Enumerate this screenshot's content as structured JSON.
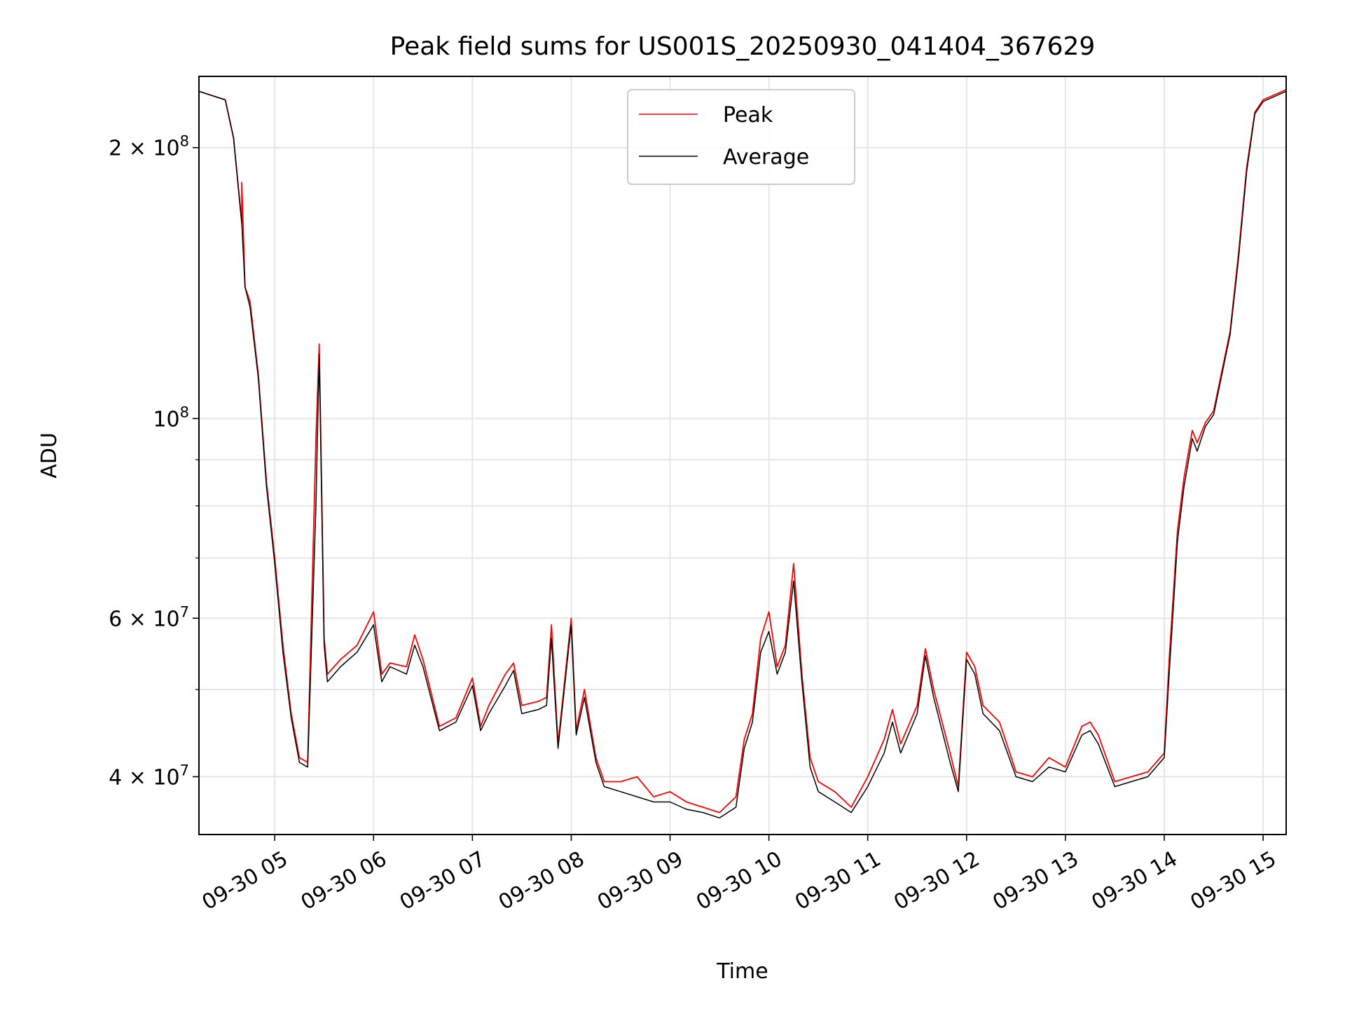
{
  "chart_data": {
    "type": "line",
    "title": "Peak field sums for US001S_20250930_041404_367629",
    "xlabel": "Time",
    "ylabel": "ADU",
    "y_scale": "log",
    "ylim": [
      34500000,
      240000000
    ],
    "xlim": [
      "2025-09-30 04:14",
      "2025-09-30 15:14"
    ],
    "grid": true,
    "legend_position": "top-center",
    "x_ticks": [
      {
        "t": "2025-09-30 05:00",
        "label": "09-30 05"
      },
      {
        "t": "2025-09-30 06:00",
        "label": "09-30 06"
      },
      {
        "t": "2025-09-30 07:00",
        "label": "09-30 07"
      },
      {
        "t": "2025-09-30 08:00",
        "label": "09-30 08"
      },
      {
        "t": "2025-09-30 09:00",
        "label": "09-30 09"
      },
      {
        "t": "2025-09-30 10:00",
        "label": "09-30 10"
      },
      {
        "t": "2025-09-30 11:00",
        "label": "09-30 11"
      },
      {
        "t": "2025-09-30 12:00",
        "label": "09-30 12"
      },
      {
        "t": "2025-09-30 13:00",
        "label": "09-30 13"
      },
      {
        "t": "2025-09-30 14:00",
        "label": "09-30 14"
      },
      {
        "t": "2025-09-30 15:00",
        "label": "09-30 15"
      }
    ],
    "y_ticks_major": [
      {
        "value": 40000000,
        "mantissa": "4",
        "exp": "7"
      },
      {
        "value": 60000000,
        "mantissa": "6",
        "exp": "7"
      },
      {
        "value": 100000000,
        "mantissa": "",
        "exp": "8"
      },
      {
        "value": 200000000,
        "mantissa": "2",
        "exp": "8"
      }
    ],
    "y_ticks_minor": [
      50000000,
      70000000,
      80000000,
      90000000
    ],
    "series": [
      {
        "name": "Peak",
        "color": "#ff0000",
        "points": [
          [
            "2025-09-30 04:14",
            231000000
          ],
          [
            "2025-09-30 04:30",
            226000000
          ],
          [
            "2025-09-30 04:35",
            205000000
          ],
          [
            "2025-09-30 04:40",
            165000000
          ],
          [
            "2025-09-30 04:40",
            183000000
          ],
          [
            "2025-09-30 04:42",
            140000000
          ],
          [
            "2025-09-30 04:45",
            135000000
          ],
          [
            "2025-09-30 04:50",
            112000000
          ],
          [
            "2025-09-30 04:55",
            85000000
          ],
          [
            "2025-09-30 05:00",
            70000000
          ],
          [
            "2025-09-30 05:05",
            56000000
          ],
          [
            "2025-09-30 05:10",
            47000000
          ],
          [
            "2025-09-30 05:15",
            42000000
          ],
          [
            "2025-09-30 05:20",
            41500000
          ],
          [
            "2025-09-30 05:25",
            95000000
          ],
          [
            "2025-09-30 05:27",
            121000000
          ],
          [
            "2025-09-30 05:30",
            57000000
          ],
          [
            "2025-09-30 05:32",
            52000000
          ],
          [
            "2025-09-30 05:40",
            54000000
          ],
          [
            "2025-09-30 05:50",
            56000000
          ],
          [
            "2025-09-30 06:00",
            61000000
          ],
          [
            "2025-09-30 06:05",
            52000000
          ],
          [
            "2025-09-30 06:10",
            53500000
          ],
          [
            "2025-09-30 06:20",
            53000000
          ],
          [
            "2025-09-30 06:25",
            57500000
          ],
          [
            "2025-09-30 06:30",
            54000000
          ],
          [
            "2025-09-30 06:40",
            45500000
          ],
          [
            "2025-09-30 06:50",
            46500000
          ],
          [
            "2025-09-30 07:00",
            51500000
          ],
          [
            "2025-09-30 07:05",
            45500000
          ],
          [
            "2025-09-30 07:10",
            48000000
          ],
          [
            "2025-09-30 07:20",
            52000000
          ],
          [
            "2025-09-30 07:25",
            53500000
          ],
          [
            "2025-09-30 07:30",
            48000000
          ],
          [
            "2025-09-30 07:40",
            48500000
          ],
          [
            "2025-09-30 07:45",
            49000000
          ],
          [
            "2025-09-30 07:48",
            59000000
          ],
          [
            "2025-09-30 07:52",
            43500000
          ],
          [
            "2025-09-30 08:00",
            60000000
          ],
          [
            "2025-09-30 08:03",
            45000000
          ],
          [
            "2025-09-30 08:08",
            50000000
          ],
          [
            "2025-09-30 08:15",
            42000000
          ],
          [
            "2025-09-30 08:20",
            39500000
          ],
          [
            "2025-09-30 08:30",
            39500000
          ],
          [
            "2025-09-30 08:40",
            40000000
          ],
          [
            "2025-09-30 08:50",
            38000000
          ],
          [
            "2025-09-30 09:00",
            38500000
          ],
          [
            "2025-09-30 09:10",
            37500000
          ],
          [
            "2025-09-30 09:20",
            37000000
          ],
          [
            "2025-09-30 09:30",
            36500000
          ],
          [
            "2025-09-30 09:40",
            38000000
          ],
          [
            "2025-09-30 09:45",
            44000000
          ],
          [
            "2025-09-30 09:50",
            47000000
          ],
          [
            "2025-09-30 09:55",
            57000000
          ],
          [
            "2025-09-30 10:00",
            61000000
          ],
          [
            "2025-09-30 10:05",
            53000000
          ],
          [
            "2025-09-30 10:10",
            56000000
          ],
          [
            "2025-09-30 10:15",
            69000000
          ],
          [
            "2025-09-30 10:20",
            52000000
          ],
          [
            "2025-09-30 10:25",
            42000000
          ],
          [
            "2025-09-30 10:30",
            39500000
          ],
          [
            "2025-09-30 10:40",
            38500000
          ],
          [
            "2025-09-30 10:50",
            37000000
          ],
          [
            "2025-09-30 11:00",
            40000000
          ],
          [
            "2025-09-30 11:10",
            44000000
          ],
          [
            "2025-09-30 11:15",
            47500000
          ],
          [
            "2025-09-30 11:20",
            43500000
          ],
          [
            "2025-09-30 11:30",
            48000000
          ],
          [
            "2025-09-30 11:35",
            55500000
          ],
          [
            "2025-09-30 11:40",
            50000000
          ],
          [
            "2025-09-30 11:50",
            42500000
          ],
          [
            "2025-09-30 11:55",
            39000000
          ],
          [
            "2025-09-30 12:00",
            55000000
          ],
          [
            "2025-09-30 12:05",
            53000000
          ],
          [
            "2025-09-30 12:10",
            48000000
          ],
          [
            "2025-09-30 12:20",
            46000000
          ],
          [
            "2025-09-30 12:30",
            40500000
          ],
          [
            "2025-09-30 12:40",
            40000000
          ],
          [
            "2025-09-30 12:50",
            42000000
          ],
          [
            "2025-09-30 13:00",
            41000000
          ],
          [
            "2025-09-30 13:10",
            45500000
          ],
          [
            "2025-09-30 13:15",
            46000000
          ],
          [
            "2025-09-30 13:20",
            44500000
          ],
          [
            "2025-09-30 13:30",
            39500000
          ],
          [
            "2025-09-30 13:40",
            40000000
          ],
          [
            "2025-09-30 13:50",
            40500000
          ],
          [
            "2025-09-30 14:00",
            42500000
          ],
          [
            "2025-09-30 14:03",
            54000000
          ],
          [
            "2025-09-30 14:08",
            75000000
          ],
          [
            "2025-09-30 14:12",
            86000000
          ],
          [
            "2025-09-30 14:17",
            97000000
          ],
          [
            "2025-09-30 14:20",
            94000000
          ],
          [
            "2025-09-30 14:25",
            99000000
          ],
          [
            "2025-09-30 14:30",
            102000000
          ],
          [
            "2025-09-30 14:40",
            125000000
          ],
          [
            "2025-09-30 14:45",
            152000000
          ],
          [
            "2025-09-30 14:50",
            190000000
          ],
          [
            "2025-09-30 14:55",
            219000000
          ],
          [
            "2025-09-30 15:00",
            226000000
          ],
          [
            "2025-09-30 15:14",
            232000000
          ]
        ]
      },
      {
        "name": "Average",
        "color": "#000000",
        "points": [
          [
            "2025-09-30 04:14",
            231000000
          ],
          [
            "2025-09-30 04:30",
            226000000
          ],
          [
            "2025-09-30 04:35",
            205000000
          ],
          [
            "2025-09-30 04:40",
            165000000
          ],
          [
            "2025-09-30 04:42",
            140000000
          ],
          [
            "2025-09-30 04:45",
            133000000
          ],
          [
            "2025-09-30 04:50",
            111000000
          ],
          [
            "2025-09-30 04:55",
            84000000
          ],
          [
            "2025-09-30 05:00",
            69000000
          ],
          [
            "2025-09-30 05:05",
            55000000
          ],
          [
            "2025-09-30 05:10",
            46500000
          ],
          [
            "2025-09-30 05:15",
            41500000
          ],
          [
            "2025-09-30 05:20",
            41000000
          ],
          [
            "2025-09-30 05:25",
            80000000
          ],
          [
            "2025-09-30 05:27",
            118000000
          ],
          [
            "2025-09-30 05:30",
            56000000
          ],
          [
            "2025-09-30 05:32",
            51000000
          ],
          [
            "2025-09-30 05:40",
            53000000
          ],
          [
            "2025-09-30 05:50",
            55000000
          ],
          [
            "2025-09-30 06:00",
            59000000
          ],
          [
            "2025-09-30 06:05",
            51000000
          ],
          [
            "2025-09-30 06:10",
            53000000
          ],
          [
            "2025-09-30 06:20",
            52000000
          ],
          [
            "2025-09-30 06:25",
            56000000
          ],
          [
            "2025-09-30 06:30",
            53000000
          ],
          [
            "2025-09-30 06:40",
            45000000
          ],
          [
            "2025-09-30 06:50",
            46000000
          ],
          [
            "2025-09-30 07:00",
            50500000
          ],
          [
            "2025-09-30 07:05",
            45000000
          ],
          [
            "2025-09-30 07:10",
            47000000
          ],
          [
            "2025-09-30 07:20",
            50500000
          ],
          [
            "2025-09-30 07:25",
            52500000
          ],
          [
            "2025-09-30 07:30",
            47000000
          ],
          [
            "2025-09-30 07:40",
            47500000
          ],
          [
            "2025-09-30 07:45",
            48000000
          ],
          [
            "2025-09-30 07:48",
            57000000
          ],
          [
            "2025-09-30 07:52",
            43000000
          ],
          [
            "2025-09-30 08:00",
            59000000
          ],
          [
            "2025-09-30 08:03",
            44500000
          ],
          [
            "2025-09-30 08:08",
            49000000
          ],
          [
            "2025-09-30 08:15",
            41500000
          ],
          [
            "2025-09-30 08:20",
            39000000
          ],
          [
            "2025-09-30 08:30",
            38500000
          ],
          [
            "2025-09-30 08:40",
            38000000
          ],
          [
            "2025-09-30 08:50",
            37500000
          ],
          [
            "2025-09-30 09:00",
            37500000
          ],
          [
            "2025-09-30 09:10",
            36800000
          ],
          [
            "2025-09-30 09:20",
            36500000
          ],
          [
            "2025-09-30 09:30",
            36000000
          ],
          [
            "2025-09-30 09:40",
            37000000
          ],
          [
            "2025-09-30 09:45",
            43000000
          ],
          [
            "2025-09-30 09:50",
            46000000
          ],
          [
            "2025-09-30 09:55",
            55000000
          ],
          [
            "2025-09-30 10:00",
            58000000
          ],
          [
            "2025-09-30 10:05",
            52000000
          ],
          [
            "2025-09-30 10:10",
            55000000
          ],
          [
            "2025-09-30 10:15",
            66000000
          ],
          [
            "2025-09-30 10:20",
            51000000
          ],
          [
            "2025-09-30 10:25",
            41000000
          ],
          [
            "2025-09-30 10:30",
            38500000
          ],
          [
            "2025-09-30 10:40",
            37500000
          ],
          [
            "2025-09-30 10:50",
            36500000
          ],
          [
            "2025-09-30 11:00",
            39000000
          ],
          [
            "2025-09-30 11:10",
            42500000
          ],
          [
            "2025-09-30 11:15",
            46000000
          ],
          [
            "2025-09-30 11:20",
            42500000
          ],
          [
            "2025-09-30 11:30",
            47000000
          ],
          [
            "2025-09-30 11:35",
            54500000
          ],
          [
            "2025-09-30 11:40",
            49000000
          ],
          [
            "2025-09-30 11:50",
            41500000
          ],
          [
            "2025-09-30 11:55",
            38500000
          ],
          [
            "2025-09-30 12:00",
            54000000
          ],
          [
            "2025-09-30 12:05",
            52000000
          ],
          [
            "2025-09-30 12:10",
            47000000
          ],
          [
            "2025-09-30 12:20",
            45000000
          ],
          [
            "2025-09-30 12:30",
            40000000
          ],
          [
            "2025-09-30 12:40",
            39500000
          ],
          [
            "2025-09-30 12:50",
            41000000
          ],
          [
            "2025-09-30 13:00",
            40500000
          ],
          [
            "2025-09-30 13:10",
            44500000
          ],
          [
            "2025-09-30 13:15",
            45000000
          ],
          [
            "2025-09-30 13:20",
            43500000
          ],
          [
            "2025-09-30 13:30",
            39000000
          ],
          [
            "2025-09-30 13:40",
            39500000
          ],
          [
            "2025-09-30 13:50",
            40000000
          ],
          [
            "2025-09-30 14:00",
            42000000
          ],
          [
            "2025-09-30 14:03",
            52000000
          ],
          [
            "2025-09-30 14:08",
            73000000
          ],
          [
            "2025-09-30 14:12",
            84000000
          ],
          [
            "2025-09-30 14:17",
            95000000
          ],
          [
            "2025-09-30 14:20",
            92000000
          ],
          [
            "2025-09-30 14:25",
            98000000
          ],
          [
            "2025-09-30 14:30",
            101000000
          ],
          [
            "2025-09-30 14:40",
            124000000
          ],
          [
            "2025-09-30 14:45",
            150000000
          ],
          [
            "2025-09-30 14:50",
            188000000
          ],
          [
            "2025-09-30 14:55",
            218000000
          ],
          [
            "2025-09-30 15:00",
            225000000
          ],
          [
            "2025-09-30 15:14",
            231000000
          ]
        ]
      }
    ]
  }
}
